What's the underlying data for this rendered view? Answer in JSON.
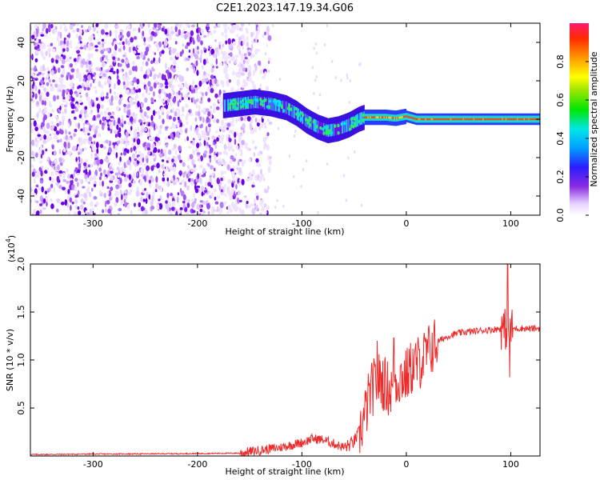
{
  "title": "C2E1.2023.147.19.34.G06",
  "chart_data": [
    {
      "type": "heatmap",
      "xlabel": "Height of straight line (km)",
      "ylabel": "Frequency (Hz)",
      "xlim": [
        -360,
        128
      ],
      "ylim": [
        -50,
        50
      ],
      "xticks": [
        -300,
        -200,
        -100,
        0,
        100
      ],
      "xtick_labels": [
        "-300",
        "-200",
        "-100",
        "0",
        "100"
      ],
      "yticks": [
        -40,
        -20,
        0,
        20,
        40
      ],
      "ytick_labels": [
        "-40",
        "-20",
        "0",
        "20",
        "40"
      ],
      "colorbar": {
        "label": "Normalized spectral amplitude",
        "range": [
          0,
          1
        ],
        "ticks": [
          0.0,
          0.2,
          0.4,
          0.6,
          0.8
        ],
        "tick_labels": [
          "0.0",
          "0.2",
          "0.4",
          "0.6",
          "0.8"
        ],
        "colormap": "rainbow"
      },
      "ridge": {
        "x": [
          -175,
          -160,
          -145,
          -130,
          -115,
          -105,
          -95,
          -85,
          -75,
          -65,
          -55,
          -45,
          -40,
          -30,
          -20,
          -10,
          0,
          10,
          40,
          70,
          100,
          128
        ],
        "y": [
          7,
          8,
          9,
          8,
          6,
          3,
          -1,
          -4,
          -6,
          -5,
          -3,
          0,
          1,
          1,
          1,
          0.5,
          1.5,
          0,
          0,
          0,
          0,
          0
        ]
      },
      "noise_region_x": [
        -360,
        -150
      ],
      "grid": false
    },
    {
      "type": "line",
      "xlabel": "Height of straight line (km)",
      "ylabel": "SNR (10 * v/v)",
      "y_multiplier": "(x10",
      "y_multiplier_exp": "4",
      "y_multiplier_close": ")",
      "xlim": [
        -360,
        128
      ],
      "ylim": [
        0,
        20000
      ],
      "xticks": [
        -300,
        -200,
        -100,
        0,
        100
      ],
      "xtick_labels": [
        "-300",
        "-200",
        "-100",
        "0",
        "100"
      ],
      "yticks": [
        5000,
        10000,
        15000,
        20000
      ],
      "ytick_labels": [
        "0.5",
        "1.0",
        "1.5",
        "2.0"
      ],
      "series": [
        {
          "color": "#ee2b2b",
          "x": [
            -360,
            -300,
            -250,
            -200,
            -160,
            -140,
            -120,
            -100,
            -90,
            -80,
            -70,
            -60,
            -55,
            -50,
            -45,
            -40,
            -35,
            -30,
            -25,
            -20,
            -15,
            -10,
            -5,
            0,
            5,
            10,
            15,
            20,
            25,
            30,
            35,
            40,
            50,
            60,
            70,
            80,
            90,
            95,
            97,
            100,
            110,
            120,
            128
          ],
          "y": [
            150,
            200,
            220,
            250,
            300,
            600,
            900,
            1400,
            1800,
            1700,
            1300,
            900,
            1100,
            1500,
            2500,
            4000,
            6500,
            7500,
            8000,
            7400,
            6800,
            7800,
            8300,
            8300,
            9200,
            9600,
            10000,
            10700,
            11400,
            11900,
            12200,
            12500,
            12800,
            12950,
            13050,
            13150,
            13250,
            13200,
            13000,
            13250,
            13300,
            13250,
            13300
          ]
        }
      ],
      "spikes": [
        {
          "x": 97,
          "y": 20000
        },
        {
          "x": 99,
          "y": 8200
        },
        {
          "x": -28,
          "y": 12000
        },
        {
          "x": -12,
          "y": 12300
        }
      ],
      "grid": false
    }
  ]
}
